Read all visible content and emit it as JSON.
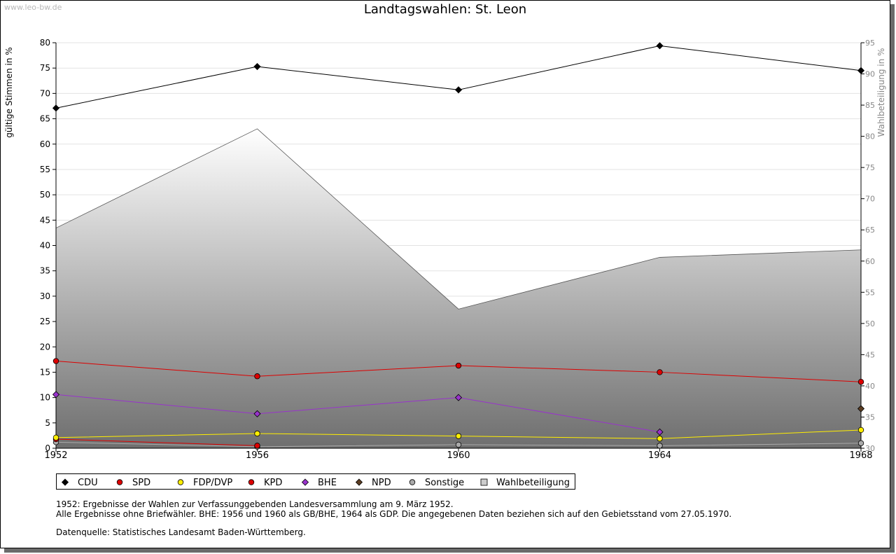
{
  "header": {
    "watermark": "www.leo-bw.de",
    "title": "Landtagswahlen: St. Leon"
  },
  "chart_data": {
    "type": "line",
    "title": "Landtagswahlen: St. Leon",
    "x": [
      1952,
      1956,
      1960,
      1964,
      1968
    ],
    "ylabel": "gültige Stimmen in %",
    "y2label": "Wahlbeteiligung in %",
    "ylim": [
      0,
      80
    ],
    "y2lim": [
      30,
      95
    ],
    "yticks": [
      0,
      5,
      10,
      15,
      20,
      25,
      30,
      35,
      40,
      45,
      50,
      55,
      60,
      65,
      70,
      75,
      80
    ],
    "y2ticks": [
      30,
      35,
      40,
      45,
      50,
      55,
      60,
      65,
      70,
      75,
      80,
      85,
      90,
      95
    ],
    "grid": true,
    "legend_position": "bottom",
    "series": [
      {
        "name": "CDU",
        "color": "#000000",
        "marker": "diamond",
        "values": [
          67.1,
          75.3,
          70.7,
          79.4,
          74.5
        ]
      },
      {
        "name": "SPD",
        "color": "#dd0000",
        "marker": "circle",
        "values": [
          17.2,
          14.2,
          16.3,
          15.0,
          13.1
        ]
      },
      {
        "name": "FDP/DVP",
        "color": "#ffee00",
        "marker": "circle",
        "values": [
          2.1,
          2.9,
          2.4,
          1.9,
          3.6
        ]
      },
      {
        "name": "KPD",
        "color": "#dd0000",
        "marker": "circle",
        "values": [
          1.8,
          0.5,
          null,
          null,
          null
        ]
      },
      {
        "name": "BHE",
        "color": "#9933cc",
        "marker": "diamond",
        "values": [
          10.6,
          6.8,
          10.0,
          3.2,
          null
        ]
      },
      {
        "name": "NPD",
        "color": "#5c3d22",
        "marker": "diamond",
        "values": [
          null,
          null,
          null,
          null,
          7.8
        ]
      },
      {
        "name": "Sonstige",
        "color": "#aaaaaa",
        "marker": "circle",
        "values": [
          1.2,
          0.3,
          0.7,
          0.5,
          1.0
        ]
      }
    ],
    "turnout": {
      "name": "Wahlbeteiligung",
      "values": [
        65.3,
        81.2,
        52.3,
        60.6,
        61.8
      ]
    }
  },
  "notes": {
    "line1": "1952: Ergebnisse der Wahlen zur Verfassunggebenden Landesversammlung am 9. März 1952.",
    "line2": "Alle Ergebnisse ohne Briefwähler. BHE: 1956 und 1960 als GB/BHE, 1964 als GDP. Die angegebenen Daten beziehen sich auf den Gebietsstand vom 27.05.1970.",
    "source": "Datenquelle: Statistisches Landesamt Baden-Württemberg."
  }
}
